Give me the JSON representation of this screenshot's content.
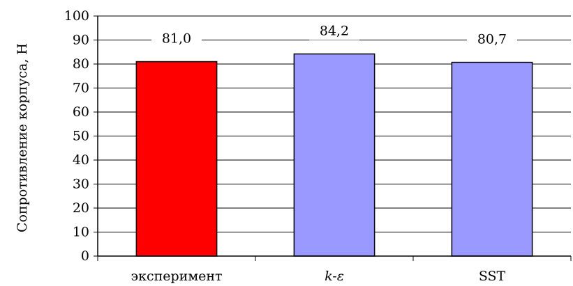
{
  "chart_data": {
    "type": "bar",
    "title": "",
    "xlabel": "",
    "ylabel": "Сопротивление корпуса, Н",
    "categories": [
      "эксперимент",
      "k-ε",
      "SST"
    ],
    "values": [
      81.0,
      84.2,
      80.7
    ],
    "value_labels": [
      "81,0",
      "84,2",
      "80,7"
    ],
    "bar_colors": [
      "#ff0000",
      "#9999ff",
      "#9999ff"
    ],
    "italic_categories": [
      false,
      true,
      false
    ],
    "ylim": [
      0,
      100
    ],
    "yticks": [
      0,
      10,
      20,
      30,
      40,
      50,
      60,
      70,
      80,
      90,
      100
    ],
    "grid": true,
    "legend": "none"
  }
}
